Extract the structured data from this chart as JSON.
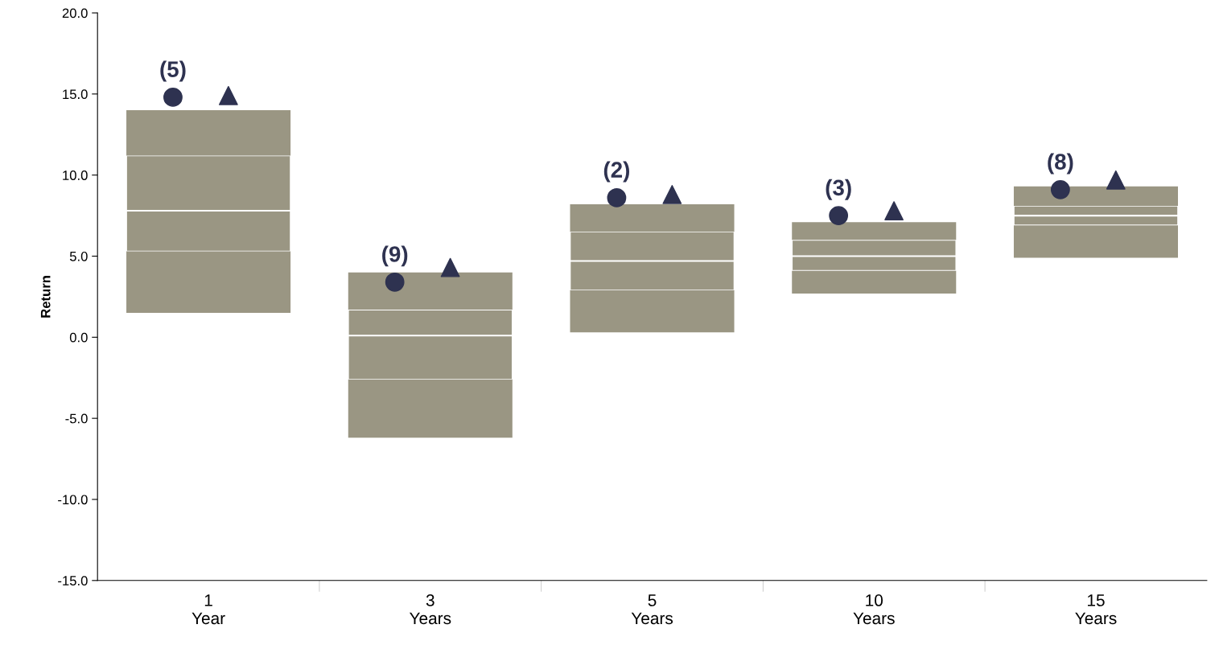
{
  "chart_data": {
    "type": "box",
    "ylabel": "Return",
    "categories": [
      "1\nYear",
      "3\nYears",
      "5\nYears",
      "10\nYears",
      "15\nYears"
    ],
    "color": "#9a9683",
    "boxes": [
      {
        "low": 1.5,
        "q1": 5.3,
        "median": 7.8,
        "q3": 11.2,
        "high": 14.0
      },
      {
        "low": -6.2,
        "q1": -2.6,
        "median": 0.1,
        "q3": 1.7,
        "high": 4.0
      },
      {
        "low": 0.3,
        "q1": 2.9,
        "median": 4.7,
        "q3": 6.5,
        "high": 8.2
      },
      {
        "low": 2.7,
        "q1": 4.1,
        "median": 5.0,
        "q3": 6.0,
        "high": 7.1
      },
      {
        "low": 4.9,
        "q1": 6.9,
        "median": 7.5,
        "q3": 8.1,
        "high": 9.3
      }
    ],
    "series": [
      {
        "type": "scatter",
        "marker": "circle",
        "color": "#2e3250",
        "x": [
          "1\nYear",
          "3\nYears",
          "5\nYears",
          "10\nYears",
          "15\nYears"
        ],
        "values": [
          14.8,
          3.4,
          8.6,
          7.5,
          9.1
        ]
      },
      {
        "type": "scatter",
        "marker": "triangle",
        "color": "#2e3250",
        "x": [
          "1\nYear",
          "3\nYears",
          "5\nYears",
          "10\nYears",
          "15\nYears"
        ],
        "values": [
          14.9,
          4.3,
          8.8,
          7.8,
          9.7
        ]
      }
    ],
    "annotations": [
      "(5)",
      "(9)",
      "(2)",
      "(3)",
      "(8)"
    ],
    "ylim": [
      -15,
      20
    ],
    "yticks": [
      {
        "value": -15,
        "label": "-15.0"
      },
      {
        "value": -10,
        "label": "-10.0"
      },
      {
        "value": -5,
        "label": "-5.0"
      },
      {
        "value": 0,
        "label": "0.0"
      },
      {
        "value": 5,
        "label": "5.0"
      },
      {
        "value": 10,
        "label": "10.0"
      },
      {
        "value": 15,
        "label": "15.0"
      },
      {
        "value": 20,
        "label": "20.0"
      }
    ],
    "grid": false
  }
}
